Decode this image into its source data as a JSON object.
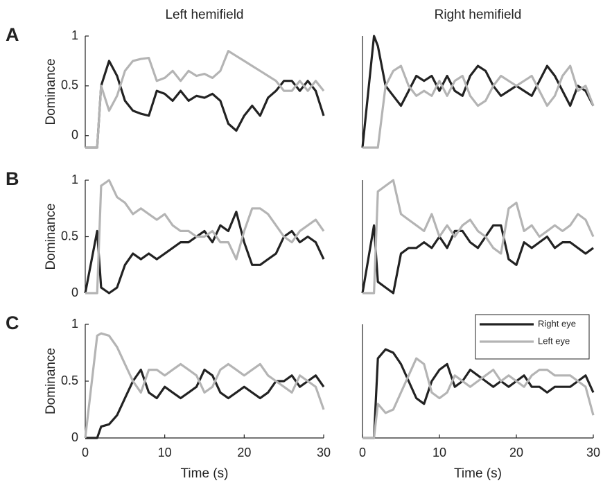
{
  "chart_data": [
    {
      "type": "line",
      "title": "Left hemifield",
      "panel_label": "A",
      "ylabel": "Dominance",
      "x": [
        0,
        1.5,
        2,
        3,
        4,
        5,
        6,
        7,
        8,
        9,
        10,
        11,
        12,
        13,
        14,
        15,
        16,
        17,
        18,
        19,
        20,
        21,
        22,
        23,
        24,
        25,
        26,
        27,
        28,
        29,
        30
      ],
      "xlim": [
        0,
        30
      ],
      "ylim": [
        -0.12,
        1
      ],
      "yticks": [
        0,
        0.5,
        1
      ],
      "series": [
        {
          "color": "#222222",
          "values": [
            -0.12,
            -0.12,
            0.5,
            0.75,
            0.6,
            0.35,
            0.25,
            0.22,
            0.2,
            0.45,
            0.42,
            0.35,
            0.45,
            0.35,
            0.4,
            0.38,
            0.42,
            0.35,
            0.12,
            0.05,
            0.2,
            0.3,
            0.2,
            0.38,
            0.45,
            0.55,
            0.55,
            0.45,
            0.55,
            0.45,
            0.2
          ]
        },
        {
          "color": "#b4b4b4",
          "values": [
            -0.12,
            -0.12,
            0.5,
            0.25,
            0.4,
            0.65,
            0.75,
            0.77,
            0.78,
            0.55,
            0.58,
            0.65,
            0.55,
            0.65,
            0.6,
            0.62,
            0.58,
            0.65,
            0.85,
            0.8,
            0.75,
            0.7,
            0.65,
            0.6,
            0.55,
            0.45,
            0.45,
            0.55,
            0.45,
            0.55,
            0.45
          ]
        }
      ]
    },
    {
      "type": "line",
      "title": "Right hemifield",
      "x": [
        0,
        1.5,
        2,
        3,
        4,
        5,
        6,
        7,
        8,
        9,
        10,
        11,
        12,
        13,
        14,
        15,
        16,
        17,
        18,
        19,
        20,
        21,
        22,
        23,
        24,
        25,
        26,
        27,
        28,
        29,
        30
      ],
      "xlim": [
        0,
        30
      ],
      "ylim": [
        -0.12,
        1
      ],
      "series": [
        {
          "color": "#222222",
          "values": [
            -0.12,
            1,
            0.9,
            0.5,
            0.4,
            0.3,
            0.45,
            0.6,
            0.55,
            0.6,
            0.45,
            0.6,
            0.45,
            0.4,
            0.6,
            0.7,
            0.65,
            0.5,
            0.4,
            0.45,
            0.5,
            0.45,
            0.4,
            0.55,
            0.7,
            0.6,
            0.45,
            0.3,
            0.5,
            0.45,
            0.3
          ]
        },
        {
          "color": "#b4b4b4",
          "values": [
            -0.12,
            -0.12,
            -0.12,
            0.5,
            0.65,
            0.7,
            0.5,
            0.4,
            0.45,
            0.4,
            0.55,
            0.4,
            0.55,
            0.6,
            0.4,
            0.3,
            0.35,
            0.5,
            0.6,
            0.55,
            0.5,
            0.55,
            0.6,
            0.45,
            0.3,
            0.4,
            0.6,
            0.7,
            0.45,
            0.5,
            0.3
          ]
        }
      ]
    },
    {
      "type": "line",
      "panel_label": "B",
      "ylabel": "Dominance",
      "x": [
        0,
        1.5,
        2,
        3,
        4,
        5,
        6,
        7,
        8,
        9,
        10,
        11,
        12,
        13,
        14,
        15,
        16,
        17,
        18,
        19,
        20,
        21,
        22,
        23,
        24,
        25,
        26,
        27,
        28,
        29,
        30
      ],
      "xlim": [
        0,
        30
      ],
      "ylim": [
        0,
        1
      ],
      "yticks": [
        0,
        0.5,
        1
      ],
      "series": [
        {
          "color": "#222222",
          "values": [
            0,
            0.55,
            0.05,
            0,
            0.05,
            0.25,
            0.35,
            0.3,
            0.35,
            0.3,
            0.35,
            0.4,
            0.45,
            0.45,
            0.5,
            0.55,
            0.45,
            0.6,
            0.55,
            0.72,
            0.45,
            0.25,
            0.25,
            0.3,
            0.35,
            0.5,
            0.55,
            0.45,
            0.5,
            0.45,
            0.3
          ]
        },
        {
          "color": "#b4b4b4",
          "values": [
            0,
            0,
            0.95,
            1,
            0.85,
            0.8,
            0.7,
            0.75,
            0.7,
            0.65,
            0.7,
            0.6,
            0.55,
            0.55,
            0.5,
            0.5,
            0.55,
            0.45,
            0.45,
            0.3,
            0.55,
            0.75,
            0.75,
            0.7,
            0.6,
            0.5,
            0.45,
            0.55,
            0.6,
            0.65,
            0.55
          ]
        }
      ]
    },
    {
      "type": "line",
      "x": [
        0,
        1.5,
        2,
        3,
        4,
        5,
        6,
        7,
        8,
        9,
        10,
        11,
        12,
        13,
        14,
        15,
        16,
        17,
        18,
        19,
        20,
        21,
        22,
        23,
        24,
        25,
        26,
        27,
        28,
        29,
        30
      ],
      "xlim": [
        0,
        30
      ],
      "ylim": [
        0,
        1
      ],
      "series": [
        {
          "color": "#222222",
          "values": [
            0,
            0.6,
            0.1,
            0.05,
            0,
            0.35,
            0.4,
            0.4,
            0.45,
            0.4,
            0.5,
            0.4,
            0.55,
            0.55,
            0.45,
            0.4,
            0.5,
            0.6,
            0.6,
            0.3,
            0.25,
            0.45,
            0.4,
            0.45,
            0.5,
            0.4,
            0.45,
            0.45,
            0.4,
            0.35,
            0.4
          ]
        },
        {
          "color": "#b4b4b4",
          "values": [
            0,
            0,
            0.9,
            0.95,
            1,
            0.7,
            0.65,
            0.6,
            0.55,
            0.7,
            0.5,
            0.6,
            0.5,
            0.6,
            0.65,
            0.55,
            0.5,
            0.4,
            0.35,
            0.75,
            0.8,
            0.55,
            0.6,
            0.5,
            0.55,
            0.6,
            0.55,
            0.6,
            0.7,
            0.65,
            0.5
          ]
        }
      ]
    },
    {
      "type": "line",
      "panel_label": "C",
      "ylabel": "Dominance",
      "xlabel": "Time (s)",
      "x": [
        0,
        1.5,
        2,
        3,
        4,
        5,
        6,
        7,
        8,
        9,
        10,
        11,
        12,
        13,
        14,
        15,
        16,
        17,
        18,
        19,
        20,
        21,
        22,
        23,
        24,
        25,
        26,
        27,
        28,
        29,
        30
      ],
      "xlim": [
        0,
        30
      ],
      "xticks": [
        0,
        10,
        20,
        30
      ],
      "ylim": [
        0,
        1
      ],
      "yticks": [
        0,
        0.5,
        1
      ],
      "series": [
        {
          "color": "#222222",
          "values": [
            0,
            0,
            0.1,
            0.12,
            0.2,
            0.35,
            0.5,
            0.6,
            0.4,
            0.35,
            0.45,
            0.4,
            0.35,
            0.4,
            0.45,
            0.6,
            0.55,
            0.4,
            0.35,
            0.4,
            0.45,
            0.4,
            0.35,
            0.4,
            0.5,
            0.5,
            0.55,
            0.45,
            0.5,
            0.55,
            0.45
          ]
        },
        {
          "color": "#b4b4b4",
          "values": [
            0,
            0.9,
            0.92,
            0.9,
            0.8,
            0.65,
            0.5,
            0.4,
            0.6,
            0.6,
            0.55,
            0.6,
            0.65,
            0.6,
            0.55,
            0.4,
            0.45,
            0.6,
            0.65,
            0.6,
            0.55,
            0.6,
            0.65,
            0.55,
            0.5,
            0.45,
            0.4,
            0.55,
            0.5,
            0.45,
            0.25
          ]
        }
      ]
    },
    {
      "type": "line",
      "xlabel": "Time (s)",
      "legend": "upper right",
      "x": [
        0,
        1.5,
        2,
        3,
        4,
        5,
        6,
        7,
        8,
        9,
        10,
        11,
        12,
        13,
        14,
        15,
        16,
        17,
        18,
        19,
        20,
        21,
        22,
        23,
        24,
        25,
        26,
        27,
        28,
        29,
        30
      ],
      "xlim": [
        0,
        30
      ],
      "xticks": [
        0,
        10,
        20,
        30
      ],
      "ylim": [
        0,
        1
      ],
      "series": [
        {
          "name": "Right eye",
          "color": "#222222",
          "values": [
            0,
            0,
            0.7,
            0.78,
            0.75,
            0.65,
            0.5,
            0.35,
            0.3,
            0.5,
            0.6,
            0.65,
            0.45,
            0.5,
            0.6,
            0.55,
            0.5,
            0.45,
            0.5,
            0.45,
            0.5,
            0.55,
            0.45,
            0.45,
            0.4,
            0.45,
            0.45,
            0.45,
            0.5,
            0.55,
            0.4
          ]
        },
        {
          "name": "Left eye",
          "color": "#b4b4b4",
          "values": [
            0,
            0,
            0.3,
            0.22,
            0.25,
            0.4,
            0.55,
            0.7,
            0.65,
            0.4,
            0.35,
            0.4,
            0.55,
            0.5,
            0.45,
            0.5,
            0.55,
            0.6,
            0.5,
            0.55,
            0.5,
            0.45,
            0.55,
            0.6,
            0.6,
            0.55,
            0.55,
            0.55,
            0.5,
            0.45,
            0.2
          ]
        }
      ]
    }
  ]
}
